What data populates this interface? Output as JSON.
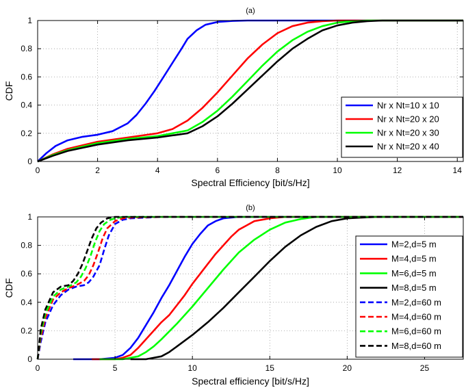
{
  "chart_data": [
    {
      "type": "line",
      "title": "(a)",
      "xlabel": "Spectral Efficiency [bit/s/Hz]",
      "ylabel": "CDF",
      "xlim": [
        0,
        14.2
      ],
      "ylim": [
        0,
        1
      ],
      "xticks": [
        0,
        2,
        4,
        6,
        8,
        10,
        12,
        14
      ],
      "yticks": [
        0,
        0.2,
        0.4,
        0.6,
        0.8,
        1
      ],
      "xtick_labels": [
        "0",
        "2",
        "4",
        "6",
        "8",
        "10",
        "12",
        "14"
      ],
      "ytick_labels": [
        "0",
        "0.2",
        "0.4",
        "0.6",
        "0.8",
        "1"
      ],
      "grid": true,
      "legend_position": "lower-right",
      "series": [
        {
          "name": "Nr x Nt=10 x 10",
          "color": "#0000ff",
          "dash": "solid",
          "x": [
            0,
            0.3,
            0.6,
            1,
            1.5,
            2,
            2.5,
            3,
            3.3,
            3.6,
            3.9,
            4.2,
            4.5,
            4.8,
            5,
            5.3,
            5.6,
            6,
            6.5,
            7,
            8,
            14.2
          ],
          "y": [
            0,
            0.06,
            0.11,
            0.15,
            0.175,
            0.19,
            0.215,
            0.27,
            0.33,
            0.41,
            0.5,
            0.6,
            0.7,
            0.8,
            0.87,
            0.93,
            0.97,
            0.99,
            0.997,
            1,
            1,
            1
          ]
        },
        {
          "name": "Nr x Nt=20 x 20",
          "color": "#ff0000",
          "dash": "solid",
          "x": [
            0,
            0.5,
            1,
            2,
            3,
            4,
            4.5,
            5,
            5.5,
            6,
            6.5,
            7,
            7.5,
            8,
            8.5,
            9,
            9.5,
            10,
            14.2
          ],
          "y": [
            0,
            0.05,
            0.09,
            0.14,
            0.17,
            0.2,
            0.23,
            0.29,
            0.38,
            0.49,
            0.61,
            0.73,
            0.83,
            0.91,
            0.96,
            0.985,
            0.995,
            1,
            1
          ]
        },
        {
          "name": "Nr x Nt=20 x 30",
          "color": "#00ff00",
          "dash": "solid",
          "x": [
            0,
            0.5,
            1,
            2,
            3,
            4,
            5,
            5.5,
            6,
            6.5,
            7,
            7.5,
            8,
            8.5,
            9,
            9.5,
            10,
            10.5,
            11,
            14.2
          ],
          "y": [
            0,
            0.045,
            0.08,
            0.13,
            0.16,
            0.18,
            0.22,
            0.28,
            0.36,
            0.46,
            0.57,
            0.68,
            0.78,
            0.86,
            0.92,
            0.96,
            0.985,
            0.995,
            1,
            1
          ]
        },
        {
          "name": "Nr x Nt=20 x 40",
          "color": "#000000",
          "dash": "solid",
          "x": [
            0,
            0.5,
            1,
            2,
            3,
            4,
            5,
            5.5,
            6,
            6.5,
            7,
            7.5,
            8,
            8.5,
            9,
            9.5,
            10,
            10.5,
            11,
            11.5,
            14.2
          ],
          "y": [
            0,
            0.04,
            0.075,
            0.12,
            0.15,
            0.17,
            0.2,
            0.25,
            0.32,
            0.41,
            0.51,
            0.61,
            0.71,
            0.8,
            0.87,
            0.93,
            0.965,
            0.985,
            0.995,
            1,
            1
          ]
        }
      ]
    },
    {
      "type": "line",
      "title": "(b)",
      "xlabel": "Spectral efficiency [bit/s/Hz]",
      "ylabel": "CDF",
      "xlim": [
        0,
        27.5
      ],
      "ylim": [
        0,
        1
      ],
      "xticks": [
        0,
        5,
        10,
        15,
        20,
        25
      ],
      "yticks": [
        0,
        0.2,
        0.4,
        0.6,
        0.8,
        1
      ],
      "xtick_labels": [
        "0",
        "5",
        "10",
        "15",
        "20",
        "25"
      ],
      "ytick_labels": [
        "0",
        "0.2",
        "0.4",
        "0.6",
        "0.8",
        "1"
      ],
      "grid": true,
      "legend_position": "right",
      "series": [
        {
          "name": "M=2,d=5 m",
          "color": "#0000ff",
          "dash": "solid",
          "x": [
            2.3,
            4,
            5,
            5.5,
            6,
            6.5,
            7,
            7.5,
            8,
            8.5,
            9,
            9.5,
            10,
            10.5,
            11,
            11.5,
            12,
            13,
            14,
            27.5
          ],
          "y": [
            0,
            0,
            0.01,
            0.03,
            0.08,
            0.15,
            0.24,
            0.33,
            0.43,
            0.52,
            0.62,
            0.72,
            0.81,
            0.88,
            0.94,
            0.97,
            0.99,
            1,
            1,
            1
          ]
        },
        {
          "name": "M=4,d=5 m",
          "color": "#ff0000",
          "dash": "solid",
          "x": [
            3.5,
            5,
            5.5,
            6,
            6.5,
            7,
            7.5,
            8,
            8.5,
            9,
            9.5,
            10,
            10.5,
            11,
            11.5,
            12,
            12.5,
            13,
            13.5,
            14,
            15,
            16,
            27.5
          ],
          "y": [
            0,
            0,
            0.01,
            0.03,
            0.08,
            0.14,
            0.2,
            0.26,
            0.31,
            0.38,
            0.45,
            0.53,
            0.6,
            0.67,
            0.74,
            0.8,
            0.86,
            0.91,
            0.94,
            0.97,
            0.99,
            1,
            1
          ]
        },
        {
          "name": "M=6,d=5 m",
          "color": "#00ff00",
          "dash": "solid",
          "x": [
            4,
            5.5,
            6,
            6.5,
            7,
            7.5,
            8,
            9,
            10,
            11,
            12,
            13,
            14,
            15,
            16,
            17,
            18,
            27.5
          ],
          "y": [
            0,
            0,
            0.01,
            0.02,
            0.05,
            0.09,
            0.14,
            0.25,
            0.37,
            0.5,
            0.63,
            0.75,
            0.84,
            0.91,
            0.96,
            0.985,
            1,
            1
          ]
        },
        {
          "name": "M=8,d=5 m",
          "color": "#000000",
          "dash": "solid",
          "x": [
            6,
            7,
            7.5,
            8,
            8.5,
            9,
            10,
            11,
            12,
            13,
            14,
            15,
            16,
            17,
            18,
            19,
            20,
            21,
            22,
            27.5
          ],
          "y": [
            0,
            0,
            0.01,
            0.02,
            0.05,
            0.09,
            0.17,
            0.26,
            0.36,
            0.47,
            0.58,
            0.69,
            0.79,
            0.87,
            0.93,
            0.97,
            0.99,
            0.995,
            1,
            1
          ]
        },
        {
          "name": "M=2,d=60 m",
          "color": "#0000ff",
          "dash": "dashed",
          "x": [
            0,
            0.2,
            0.5,
            1,
            1.5,
            2,
            2.5,
            3,
            3.3,
            3.6,
            4,
            4.3,
            4.6,
            5,
            5.5,
            6,
            8,
            27.5
          ],
          "y": [
            0,
            0.12,
            0.26,
            0.38,
            0.45,
            0.49,
            0.51,
            0.52,
            0.54,
            0.58,
            0.66,
            0.77,
            0.87,
            0.95,
            0.98,
            0.99,
            1,
            1
          ]
        },
        {
          "name": "M=4,d=60 m",
          "color": "#ff0000",
          "dash": "dashed",
          "x": [
            0,
            0.2,
            0.5,
            1,
            1.5,
            2,
            2.5,
            3,
            3.3,
            3.6,
            3.9,
            4.2,
            4.5,
            5,
            5.5,
            6,
            8,
            27.5
          ],
          "y": [
            0,
            0.15,
            0.29,
            0.42,
            0.47,
            0.5,
            0.52,
            0.55,
            0.59,
            0.66,
            0.75,
            0.85,
            0.92,
            0.97,
            0.99,
            0.995,
            1,
            1
          ]
        },
        {
          "name": "M=6,d=60 m",
          "color": "#00ff00",
          "dash": "dashed",
          "x": [
            0,
            0.2,
            0.5,
            1,
            1.5,
            2,
            2.5,
            2.8,
            3.1,
            3.4,
            3.7,
            4,
            4.3,
            4.7,
            5,
            5.5,
            8,
            27.5
          ],
          "y": [
            0,
            0.18,
            0.32,
            0.44,
            0.49,
            0.51,
            0.54,
            0.58,
            0.64,
            0.72,
            0.82,
            0.9,
            0.95,
            0.98,
            0.99,
            1,
            1,
            1
          ]
        },
        {
          "name": "M=8,d=60 m",
          "color": "#000000",
          "dash": "dashed",
          "x": [
            0,
            0.2,
            0.5,
            1,
            1.5,
            2,
            2.3,
            2.6,
            2.9,
            3.2,
            3.5,
            3.8,
            4.1,
            4.5,
            5,
            8,
            27.5
          ],
          "y": [
            0,
            0.21,
            0.35,
            0.47,
            0.51,
            0.52,
            0.55,
            0.6,
            0.67,
            0.76,
            0.85,
            0.92,
            0.96,
            0.99,
            1,
            1,
            1
          ]
        }
      ]
    }
  ]
}
